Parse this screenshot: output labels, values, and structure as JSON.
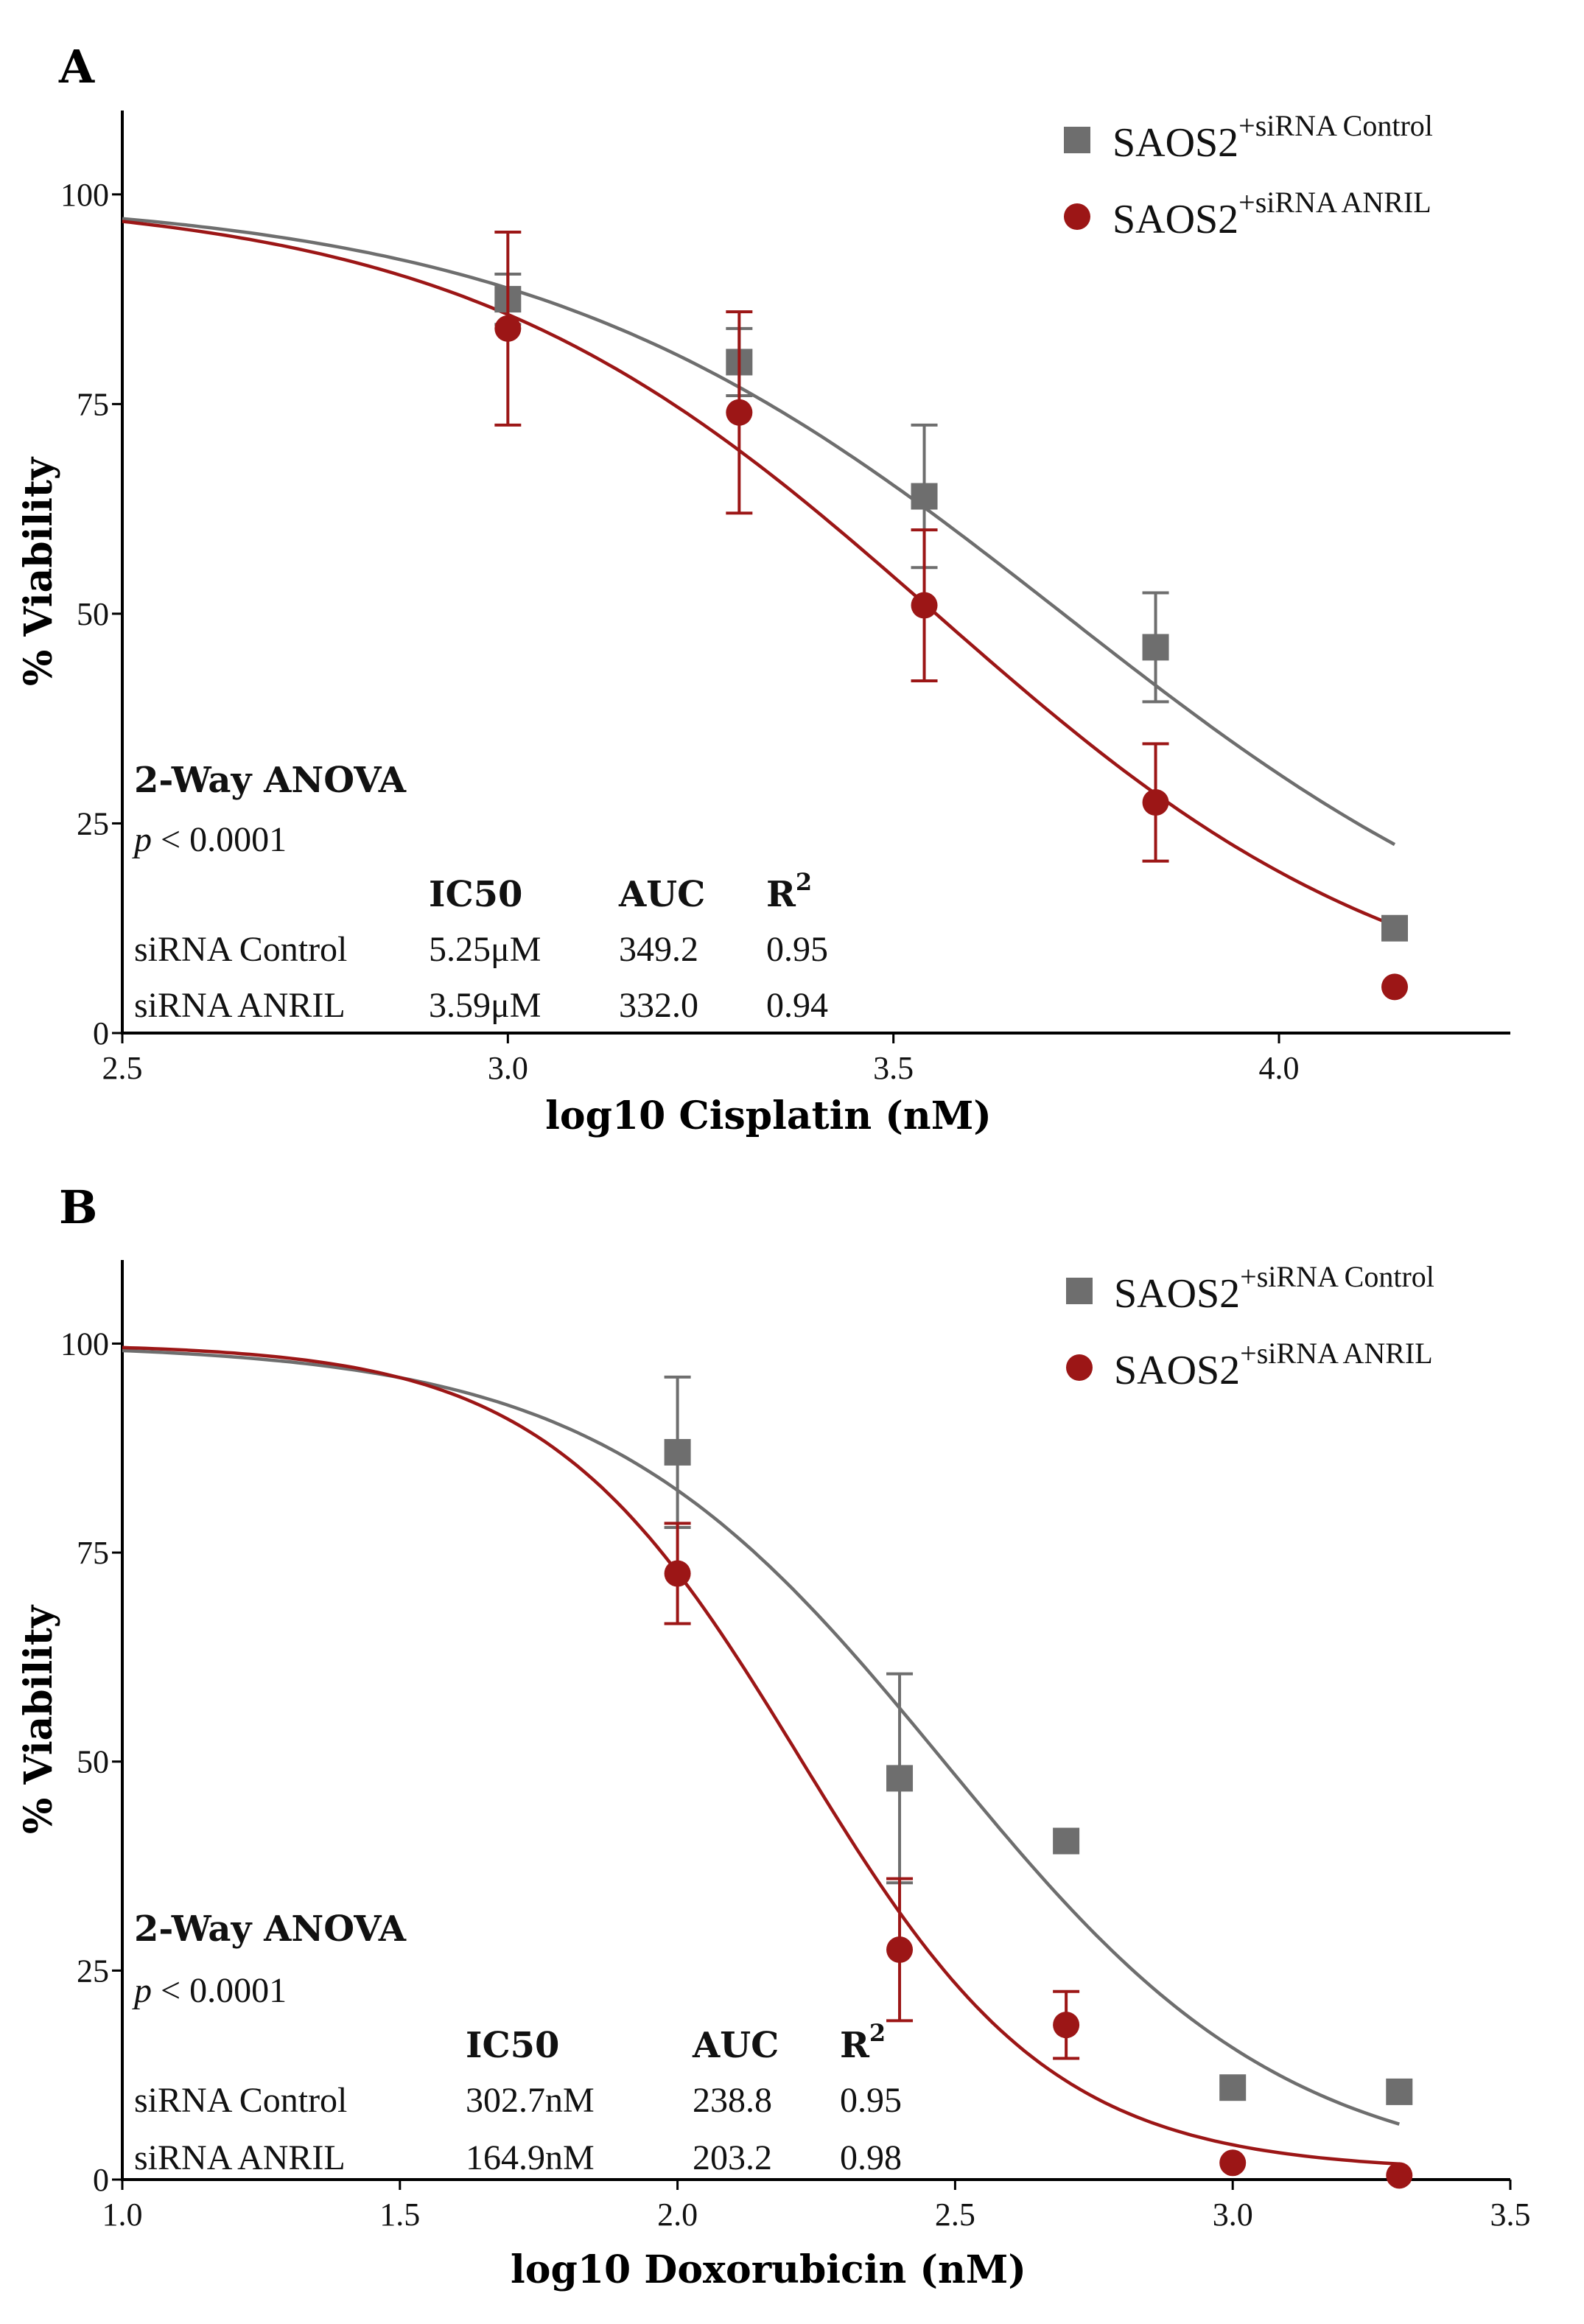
{
  "colors": {
    "control": "#6e6e6e",
    "anril": "#9c1616",
    "axis": "#000000"
  },
  "chart_data": [
    {
      "type": "scatter",
      "panel": "A",
      "xlabel": "log10 Cisplatin (nM)",
      "ylabel": "% Viability",
      "xlim": [
        2.5,
        4.3
      ],
      "ylim": [
        0,
        110
      ],
      "xticks": [
        2.5,
        3.0,
        3.5,
        4.0
      ],
      "xtick_labels": [
        "2.5",
        "3.0",
        "3.5",
        "4.0"
      ],
      "yticks": [
        0,
        25,
        50,
        75,
        100
      ],
      "ytick_labels": [
        "0",
        "25",
        "50",
        "75",
        "100"
      ],
      "legend": {
        "position": "top-right",
        "entries": [
          {
            "base": "SAOS2",
            "sup": "+siRNA Control",
            "marker": "square",
            "series": "control"
          },
          {
            "base": "SAOS2",
            "sup": "+siRNA ANRIL",
            "marker": "circle",
            "series": "anril"
          }
        ]
      },
      "annotation": {
        "title": "2-Way ANOVA",
        "p_italic": "p",
        "p_rest": " < 0.0001"
      },
      "table": {
        "headers": [
          "IC50",
          "AUC",
          "R2"
        ],
        "rows": [
          {
            "name": "siRNA Control",
            "ic50": "5.25μM",
            "auc": "349.2",
            "r2": "0.95"
          },
          {
            "name": "siRNA ANRIL",
            "ic50": "3.59μM",
            "auc": "332.0",
            "r2": "0.94"
          }
        ]
      },
      "series": [
        {
          "name": "siRNA Control",
          "key": "control",
          "marker": "square",
          "x": [
            3.0,
            3.3,
            3.54,
            3.84,
            4.15
          ],
          "y": [
            87.5,
            80,
            64,
            46,
            12.5
          ],
          "err": [
            3,
            4,
            8.5,
            6.5,
            1
          ],
          "fit": {
            "top": 100,
            "bottom": 0,
            "logec50": 3.72,
            "hill": 1.25
          },
          "fit_range": [
            2.5,
            4.15
          ]
        },
        {
          "name": "siRNA ANRIL",
          "key": "anril",
          "marker": "circle",
          "x": [
            3.0,
            3.3,
            3.54,
            3.84,
            4.15
          ],
          "y": [
            84,
            74,
            51,
            27.5,
            5.5
          ],
          "err": [
            11.5,
            12,
            9,
            7,
            0.5
          ],
          "fit": {
            "top": 100,
            "bottom": 0,
            "logec50": 3.555,
            "hill": 1.4
          },
          "fit_range": [
            2.5,
            4.15
          ]
        }
      ]
    },
    {
      "type": "scatter",
      "panel": "B",
      "xlabel": "log10 Doxorubicin (nM)",
      "ylabel": "% Viability",
      "xlim": [
        1.0,
        3.5
      ],
      "ylim": [
        0,
        110
      ],
      "xticks": [
        1.0,
        1.5,
        2.0,
        2.5,
        3.0,
        3.5
      ],
      "xtick_labels": [
        "1.0",
        "1.5",
        "2.0",
        "2.5",
        "3.0",
        "3.5"
      ],
      "yticks": [
        0,
        25,
        50,
        75,
        100
      ],
      "ytick_labels": [
        "0",
        "25",
        "50",
        "75",
        "100"
      ],
      "legend": {
        "position": "top-right",
        "entries": [
          {
            "base": "SAOS2",
            "sup": "+siRNA Control",
            "marker": "square",
            "series": "control"
          },
          {
            "base": "SAOS2",
            "sup": "+siRNA ANRIL",
            "marker": "circle",
            "series": "anril"
          }
        ]
      },
      "annotation": {
        "title": "2-Way ANOVA",
        "p_italic": "p",
        "p_rest": " < 0.0001"
      },
      "table": {
        "headers": [
          "IC50",
          "AUC",
          "R2"
        ],
        "rows": [
          {
            "name": "siRNA Control",
            "ic50": "302.7nM",
            "auc": "238.8",
            "r2": "0.95"
          },
          {
            "name": "siRNA ANRIL",
            "ic50": "164.9nM",
            "auc": "203.2",
            "r2": "0.98"
          }
        ]
      },
      "series": [
        {
          "name": "siRNA Control",
          "key": "control",
          "marker": "square",
          "x": [
            2.0,
            2.4,
            2.7,
            3.0,
            3.3
          ],
          "y": [
            87,
            48,
            40.5,
            11,
            10.5
          ],
          "err": [
            9,
            12.5,
            1,
            1,
            1
          ],
          "fit": {
            "top": 100,
            "bottom": 0,
            "logec50": 2.48,
            "hill": 1.4
          },
          "fit_range": [
            1.0,
            3.3
          ]
        },
        {
          "name": "siRNA ANRIL",
          "key": "anril",
          "marker": "circle",
          "x": [
            2.0,
            2.4,
            2.7,
            3.0,
            3.3
          ],
          "y": [
            72.5,
            27.5,
            18.5,
            2,
            0.5
          ],
          "err": [
            6,
            8.5,
            4,
            0.5,
            0.5
          ],
          "fit": {
            "top": 100,
            "bottom": 1,
            "logec50": 2.22,
            "hill": 1.9
          },
          "fit_range": [
            1.0,
            3.3
          ]
        }
      ]
    }
  ]
}
